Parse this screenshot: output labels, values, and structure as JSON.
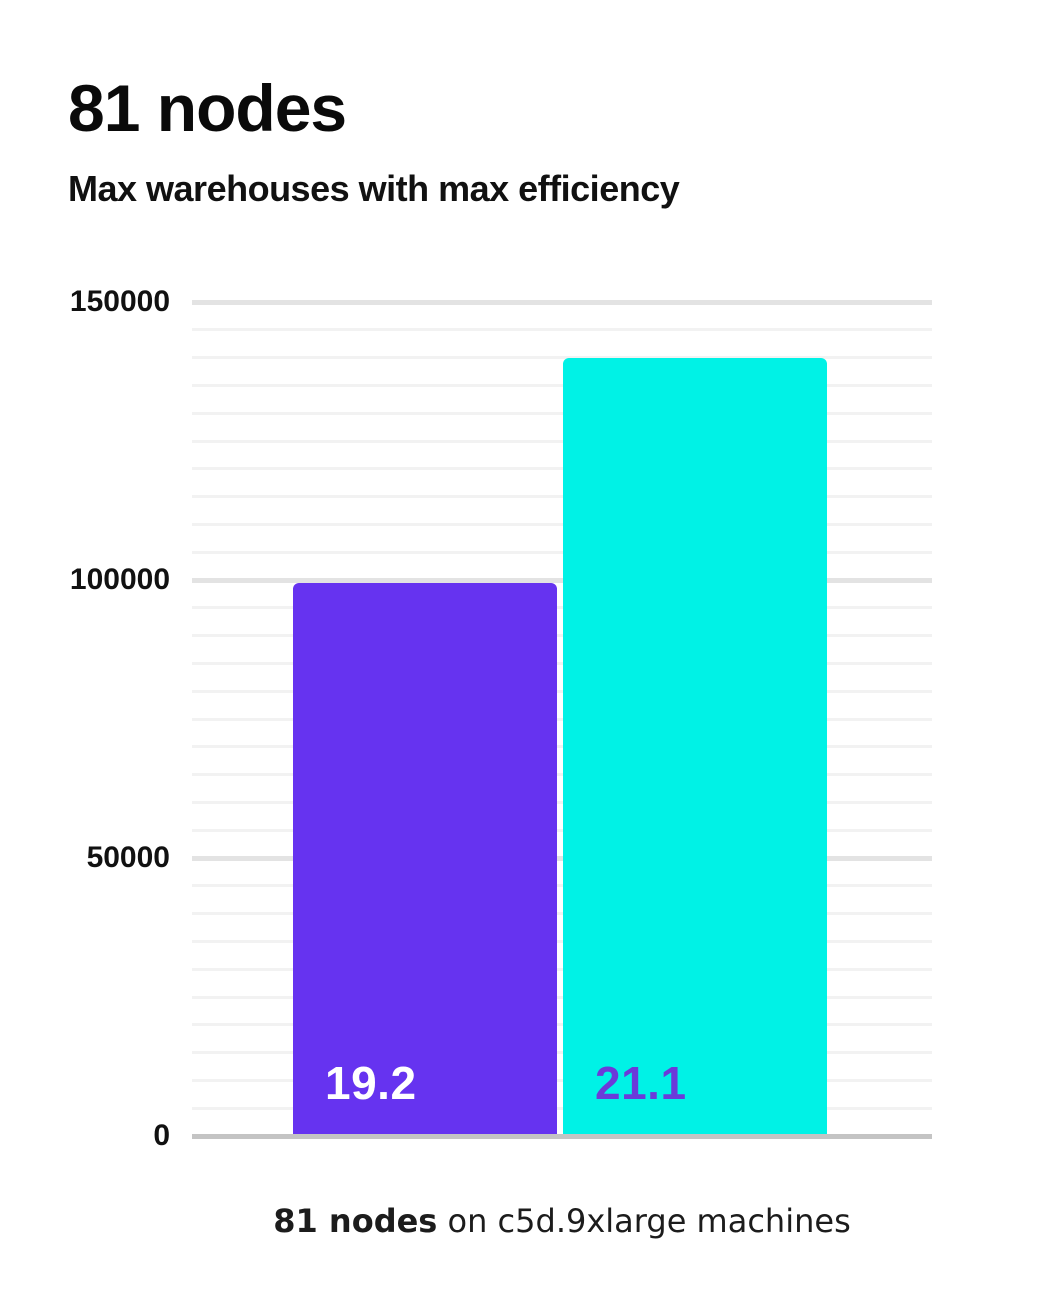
{
  "header": {
    "title": "81 nodes",
    "subtitle": "Max warehouses with max efficiency"
  },
  "caption": {
    "bold": "81 nodes",
    "rest": " on c5d.9xlarge machines"
  },
  "colors": {
    "card_bg": "#FFFFFF",
    "title_text": "#0A0A0A",
    "tick_text": "#111111",
    "axis_line": "#C4C4C4",
    "grid_major": "#E3E3E3",
    "grid_minor": "#F2F2F2",
    "bar_purple": "#6633F0",
    "bar_cyan": "#00F2E6",
    "label_white": "#FFFFFF",
    "label_purple": "#6B3AD9"
  },
  "chart_data": {
    "type": "bar",
    "title": "81 nodes",
    "subtitle": "Max warehouses with max efficiency",
    "caption": "81 nodes on c5d.9xlarge machines",
    "xlabel": "",
    "ylabel": "",
    "ylim": [
      0,
      150000
    ],
    "yticks": [
      0,
      50000,
      100000,
      150000
    ],
    "ytick_labels": [
      "0",
      "50000",
      "100000",
      "150000"
    ],
    "minor_grid_step": 5000,
    "grid": true,
    "legend": false,
    "categories": [
      "19.2",
      "21.1"
    ],
    "values": [
      99500,
      140000
    ],
    "bars": [
      {
        "label": "19.2",
        "value": 99500,
        "bar_color": "#6633F0",
        "label_color": "#FFFFFF"
      },
      {
        "label": "21.1",
        "value": 140000,
        "bar_color": "#00F2E6",
        "label_color": "#6B3AD9"
      }
    ]
  }
}
